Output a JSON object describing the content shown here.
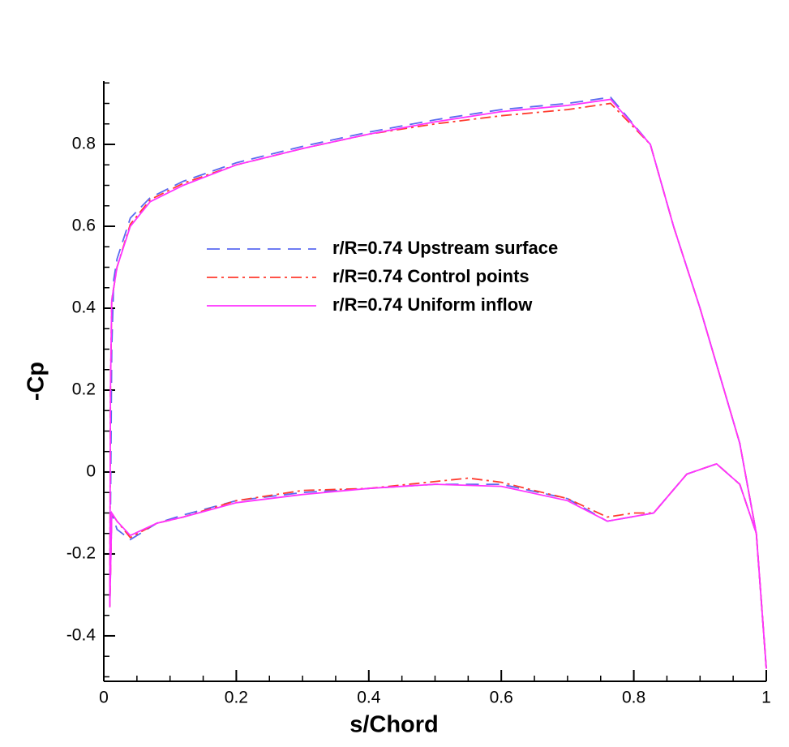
{
  "chart_data": {
    "type": "line",
    "xlabel": "s/Chord",
    "ylabel": "-Cp",
    "xlim": [
      0,
      1
    ],
    "ylim": [
      -0.511,
      0.9545
    ],
    "xticks": [
      0,
      0.2,
      0.4,
      0.6,
      0.8,
      1
    ],
    "yticks": [
      -0.4,
      -0.2,
      0,
      0.2,
      0.4,
      0.6,
      0.8
    ],
    "legend": "upper center",
    "series": [
      {
        "name": "r/R=0.74 Upstream surface",
        "color": "#5a6af0",
        "dash": "dashed",
        "x": [
          1.0,
          0.985,
          0.96,
          0.9,
          0.86,
          0.825,
          0.765,
          0.7,
          0.6,
          0.5,
          0.4,
          0.3,
          0.2,
          0.12,
          0.07,
          0.04,
          0.02,
          0.015,
          0.012,
          0.009,
          0.012,
          0.02,
          0.04,
          0.08,
          0.12,
          0.2,
          0.3,
          0.4,
          0.5,
          0.6,
          0.7,
          0.76,
          0.83,
          0.88,
          0.925,
          0.96,
          0.985,
          1.0
        ],
        "values": [
          -0.48,
          -0.15,
          0.07,
          0.4,
          0.6,
          0.8,
          0.915,
          0.9,
          0.885,
          0.86,
          0.83,
          0.795,
          0.755,
          0.71,
          0.67,
          0.62,
          0.52,
          0.47,
          0.3,
          -0.33,
          -0.1,
          -0.14,
          -0.165,
          -0.125,
          -0.105,
          -0.07,
          -0.05,
          -0.04,
          -0.03,
          -0.03,
          -0.065,
          -0.12,
          -0.1,
          -0.005,
          0.02,
          -0.03,
          -0.15,
          -0.48
        ]
      },
      {
        "name": "r/R=0.74 Control points",
        "color": "#ff3b2f",
        "dash": "dashdot",
        "x": [
          1.0,
          0.985,
          0.96,
          0.9,
          0.86,
          0.825,
          0.765,
          0.7,
          0.6,
          0.5,
          0.4,
          0.3,
          0.2,
          0.12,
          0.07,
          0.04,
          0.02,
          0.012,
          0.01,
          0.009,
          0.012,
          0.02,
          0.04,
          0.08,
          0.12,
          0.2,
          0.3,
          0.4,
          0.55,
          0.6,
          0.7,
          0.76,
          0.8,
          0.83,
          0.88,
          0.925,
          0.96,
          0.985,
          1.0
        ],
        "values": [
          -0.48,
          -0.15,
          0.07,
          0.4,
          0.6,
          0.8,
          0.9,
          0.885,
          0.87,
          0.85,
          0.825,
          0.79,
          0.75,
          0.705,
          0.665,
          0.605,
          0.5,
          0.42,
          0.2,
          -0.33,
          -0.1,
          -0.12,
          -0.16,
          -0.125,
          -0.11,
          -0.07,
          -0.045,
          -0.04,
          -0.015,
          -0.025,
          -0.065,
          -0.11,
          -0.1,
          -0.1,
          -0.005,
          0.02,
          -0.03,
          -0.15,
          -0.48
        ]
      },
      {
        "name": "r/R=0.74 Uniform inflow",
        "color": "#ff33ff",
        "dash": "solid",
        "x": [
          1.0,
          0.985,
          0.96,
          0.9,
          0.86,
          0.825,
          0.765,
          0.7,
          0.6,
          0.5,
          0.4,
          0.3,
          0.2,
          0.12,
          0.07,
          0.04,
          0.02,
          0.012,
          0.01,
          0.009,
          0.012,
          0.02,
          0.04,
          0.08,
          0.12,
          0.2,
          0.3,
          0.4,
          0.5,
          0.6,
          0.7,
          0.76,
          0.83,
          0.88,
          0.925,
          0.96,
          0.985,
          1.0
        ],
        "values": [
          -0.48,
          -0.15,
          0.07,
          0.4,
          0.6,
          0.8,
          0.91,
          0.895,
          0.88,
          0.855,
          0.825,
          0.79,
          0.75,
          0.7,
          0.66,
          0.6,
          0.5,
          0.42,
          0.2,
          -0.33,
          -0.1,
          -0.12,
          -0.155,
          -0.125,
          -0.11,
          -0.075,
          -0.055,
          -0.04,
          -0.03,
          -0.035,
          -0.07,
          -0.12,
          -0.1,
          -0.005,
          0.02,
          -0.03,
          -0.15,
          -0.48
        ]
      }
    ]
  }
}
